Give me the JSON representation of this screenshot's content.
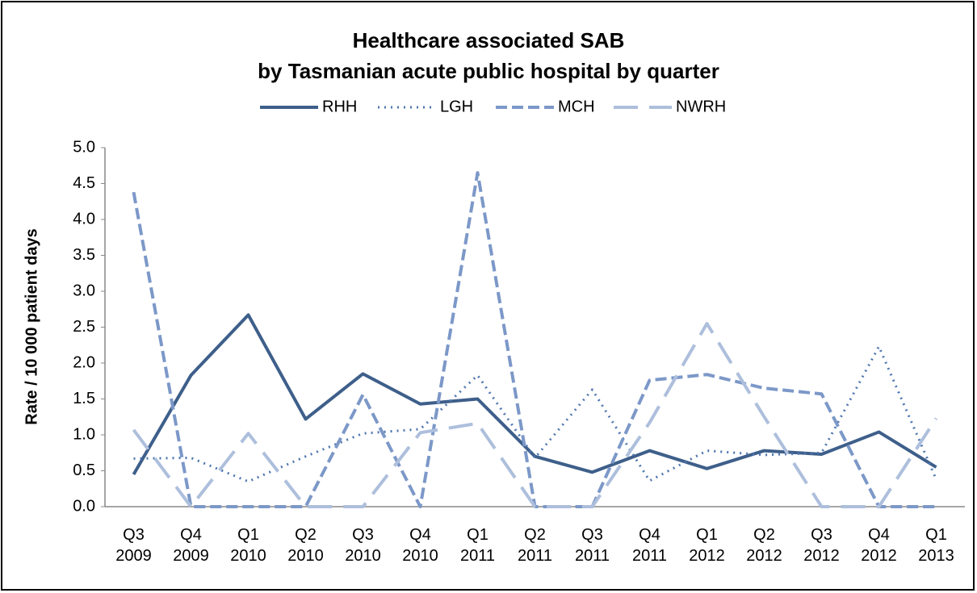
{
  "chart_data": {
    "type": "line",
    "title": "Healthcare associated SAB",
    "subtitle": "by Tasmanian acute public hospital by quarter",
    "ylabel": "Rate / 10 000 patient days",
    "categories": [
      "Q3 2009",
      "Q4 2009",
      "Q1 2010",
      "Q2 2010",
      "Q3 2010",
      "Q4 2010",
      "Q1 2011",
      "Q2 2011",
      "Q3 2011",
      "Q4 2011",
      "Q1 2012",
      "Q2 2012",
      "Q3 2012",
      "Q4 2012",
      "Q1 2013"
    ],
    "series": [
      {
        "name": "RHH",
        "color": "#3e5f8a",
        "dash": "solid",
        "values": [
          0.45,
          1.83,
          2.67,
          1.22,
          1.85,
          1.43,
          1.5,
          0.7,
          0.48,
          0.78,
          0.53,
          0.78,
          0.73,
          1.04,
          0.55
        ]
      },
      {
        "name": "LGH",
        "color": "#4f76b0",
        "dash": "dotted",
        "values": [
          0.67,
          0.68,
          0.35,
          0.7,
          1.02,
          1.08,
          1.83,
          0.68,
          1.63,
          0.36,
          0.78,
          0.72,
          0.75,
          2.23,
          0.38
        ]
      },
      {
        "name": "MCH",
        "color": "#7c98c8",
        "dash": "dashed",
        "values": [
          4.38,
          0,
          0,
          0,
          1.56,
          0,
          4.65,
          0,
          0,
          1.76,
          1.84,
          1.65,
          1.57,
          0,
          0
        ]
      },
      {
        "name": "NWRH",
        "color": "#adbfdc",
        "dash": "longdash",
        "values": [
          1.07,
          0,
          1.02,
          0,
          0,
          1.03,
          1.16,
          0,
          0,
          1.17,
          2.55,
          1.25,
          0,
          0,
          1.23
        ]
      }
    ],
    "ylim": [
      0,
      5
    ],
    "yticks": [
      {
        "value": 0,
        "label": "0.0"
      },
      {
        "value": 0.5,
        "label": "0.5"
      },
      {
        "value": 1,
        "label": "1.0"
      },
      {
        "value": 1.5,
        "label": "1.5"
      },
      {
        "value": 2,
        "label": "2.0"
      },
      {
        "value": 2.5,
        "label": "2.5"
      },
      {
        "value": 3,
        "label": "3.0"
      },
      {
        "value": 3.5,
        "label": "3.5"
      },
      {
        "value": 4,
        "label": "4.0"
      },
      {
        "value": 4.5,
        "label": "4.5"
      },
      {
        "value": 5,
        "label": "5.0"
      }
    ],
    "legend": "top"
  }
}
